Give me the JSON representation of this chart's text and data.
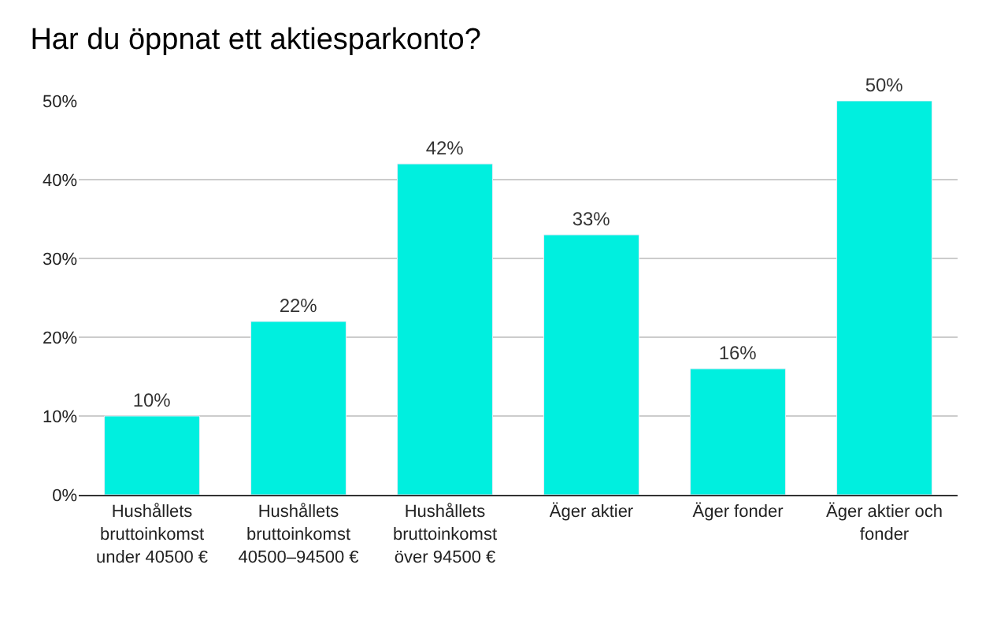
{
  "chart_data": {
    "type": "bar",
    "title": "Har du öppnat ett aktiesparkonto?",
    "categories": [
      "Hushållets bruttoinkomst under 40500 €",
      "Hushållets bruttoinkomst 40500–94500 €",
      "Hushållets bruttoinkomst över 94500 €",
      "Äger aktier",
      "Äger fonder",
      "Äger aktier och fonder"
    ],
    "values": [
      10,
      22,
      42,
      33,
      16,
      50
    ],
    "value_labels": [
      "10%",
      "22%",
      "42%",
      "33%",
      "16%",
      "50%"
    ],
    "color": "#00efdf",
    "ylim": [
      0,
      50
    ],
    "yticks": [
      {
        "value": 0,
        "label": "0%"
      },
      {
        "value": 10,
        "label": "10%"
      },
      {
        "value": 20,
        "label": "20%"
      },
      {
        "value": 30,
        "label": "30%"
      },
      {
        "value": 40,
        "label": "40%"
      },
      {
        "value": 50,
        "label": "50%"
      }
    ],
    "grid": "y"
  }
}
